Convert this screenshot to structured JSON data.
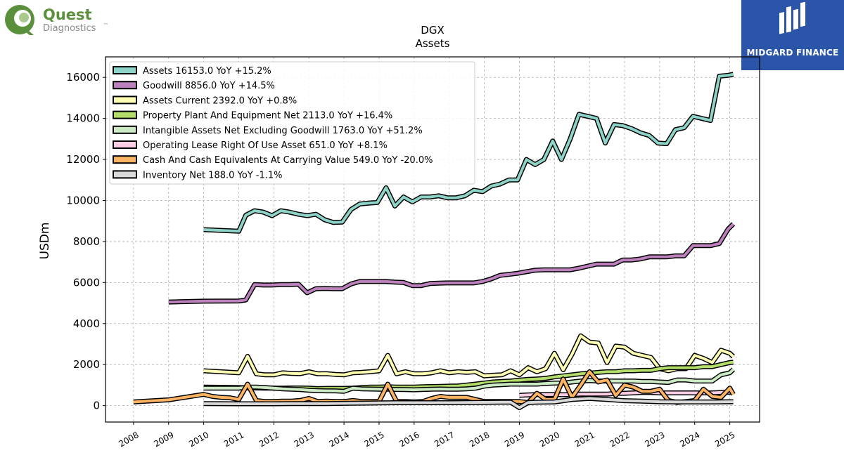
{
  "logos": {
    "left_brand": "Quest",
    "left_sub": "Diagnostics",
    "left_tm": "™",
    "right_brand": "MIDGARD FINANCE"
  },
  "colors": {
    "quest_green": "#5a8f3c",
    "quest_gray": "#8a8a8a",
    "midgard_blue": "#2b55a8"
  },
  "chart_data": {
    "type": "line",
    "title": "DGX",
    "subtitle": "Assets",
    "xlabel": "",
    "ylabel": "USDm",
    "xlim": [
      2007.2,
      2025.85
    ],
    "ylim": [
      -800,
      17000
    ],
    "yticks": [
      0,
      2000,
      4000,
      6000,
      8000,
      10000,
      12000,
      14000,
      16000
    ],
    "xticks": [
      2008,
      2009,
      2010,
      2011,
      2012,
      2013,
      2014,
      2015,
      2016,
      2017,
      2018,
      2019,
      2020,
      2021,
      2022,
      2023,
      2024,
      2025
    ],
    "grid": true,
    "legend_position": "top-left",
    "series": [
      {
        "name": "Assets",
        "legend": "Assets  16153.0 YoY +15.2%",
        "color": "#8dd3c7",
        "x": [
          2010.0,
          2011.0,
          2011.2,
          2011.45,
          2011.7,
          2011.95,
          2012.2,
          2012.45,
          2012.7,
          2012.95,
          2013.2,
          2013.45,
          2013.7,
          2013.95,
          2014.2,
          2014.45,
          2014.7,
          2014.95,
          2015.2,
          2015.45,
          2015.7,
          2015.95,
          2016.2,
          2016.45,
          2016.7,
          2016.95,
          2017.2,
          2017.45,
          2017.7,
          2017.95,
          2018.2,
          2018.45,
          2018.7,
          2018.95,
          2019.2,
          2019.45,
          2019.7,
          2019.95,
          2020.2,
          2020.45,
          2020.7,
          2020.95,
          2021.2,
          2021.45,
          2021.7,
          2021.95,
          2022.2,
          2022.45,
          2022.7,
          2022.95,
          2023.2,
          2023.45,
          2023.7,
          2023.95,
          2024.2,
          2024.45,
          2024.7,
          2024.95,
          2025.1
        ],
        "y": [
          8580,
          8500,
          9280,
          9500,
          9430,
          9260,
          9500,
          9430,
          9330,
          9260,
          9330,
          9060,
          8930,
          8950,
          9560,
          9830,
          9870,
          9900,
          10620,
          9730,
          10170,
          9930,
          10170,
          10170,
          10230,
          10130,
          10130,
          10230,
          10500,
          10430,
          10700,
          10800,
          11000,
          11000,
          12000,
          11750,
          12000,
          12900,
          12000,
          13000,
          14200,
          14100,
          14000,
          12800,
          13700,
          13650,
          13500,
          13300,
          13170,
          12800,
          12770,
          13450,
          13550,
          14100,
          14000,
          13900,
          16060,
          16100,
          16150
        ]
      },
      {
        "name": "Goodwill",
        "legend": "Goodwill  8856.0 YoY +14.5%",
        "color": "#bc80bd",
        "x": [
          2009.0,
          2010.0,
          2011.0,
          2011.2,
          2011.45,
          2011.7,
          2011.95,
          2012.2,
          2012.45,
          2012.7,
          2012.95,
          2013.2,
          2013.45,
          2013.7,
          2013.95,
          2014.2,
          2014.45,
          2014.7,
          2014.95,
          2015.2,
          2015.45,
          2015.7,
          2015.95,
          2016.2,
          2016.45,
          2016.7,
          2016.95,
          2017.2,
          2017.45,
          2017.7,
          2017.95,
          2018.2,
          2018.45,
          2018.7,
          2018.95,
          2019.2,
          2019.45,
          2019.7,
          2019.95,
          2020.2,
          2020.45,
          2020.7,
          2020.95,
          2021.2,
          2021.45,
          2021.7,
          2021.95,
          2022.2,
          2022.45,
          2022.7,
          2022.95,
          2023.2,
          2023.45,
          2023.7,
          2023.95,
          2024.2,
          2024.45,
          2024.7,
          2024.95,
          2025.1
        ],
        "y": [
          5050,
          5090,
          5100,
          5150,
          5900,
          5880,
          5880,
          5900,
          5900,
          5920,
          5500,
          5700,
          5710,
          5700,
          5700,
          5930,
          6050,
          6050,
          6050,
          6050,
          6020,
          6000,
          5850,
          5850,
          5950,
          5970,
          5980,
          5980,
          5980,
          5980,
          6050,
          6180,
          6350,
          6400,
          6450,
          6530,
          6600,
          6620,
          6620,
          6620,
          6620,
          6700,
          6800,
          6900,
          6900,
          6900,
          7100,
          7100,
          7150,
          7250,
          7250,
          7250,
          7300,
          7300,
          7800,
          7800,
          7800,
          7900,
          8600,
          8856
        ]
      },
      {
        "name": "Assets Current",
        "legend": "Assets Current  2392.0 YoY +0.8%",
        "color": "#ffffb3",
        "x": [
          2010.0,
          2011.0,
          2011.25,
          2011.5,
          2011.75,
          2012.0,
          2012.25,
          2012.5,
          2012.75,
          2013.0,
          2013.25,
          2013.5,
          2013.75,
          2014.0,
          2014.25,
          2014.5,
          2014.75,
          2015.0,
          2015.25,
          2015.5,
          2015.75,
          2016.0,
          2016.25,
          2016.5,
          2016.75,
          2017.0,
          2017.25,
          2017.5,
          2017.75,
          2018.0,
          2018.25,
          2018.5,
          2018.75,
          2019.0,
          2019.25,
          2019.5,
          2019.75,
          2020.0,
          2020.25,
          2020.5,
          2020.75,
          2021.0,
          2021.25,
          2021.5,
          2021.75,
          2022.0,
          2022.25,
          2022.5,
          2022.75,
          2023.0,
          2023.25,
          2023.5,
          2023.75,
          2024.0,
          2024.25,
          2024.5,
          2024.75,
          2025.0,
          2025.1
        ],
        "y": [
          1700,
          1600,
          2400,
          1550,
          1500,
          1500,
          1600,
          1570,
          1560,
          1650,
          1550,
          1560,
          1520,
          1500,
          1600,
          1620,
          1650,
          1700,
          2450,
          1550,
          1650,
          1550,
          1550,
          1600,
          1700,
          1600,
          1650,
          1620,
          1650,
          1450,
          1480,
          1500,
          1700,
          1500,
          1850,
          1650,
          1800,
          2550,
          1750,
          2500,
          3400,
          3100,
          3050,
          2100,
          2900,
          2850,
          2550,
          2450,
          2350,
          1800,
          1700,
          1800,
          1800,
          2450,
          2300,
          2100,
          2700,
          2550,
          2392
        ]
      },
      {
        "name": "Property Plant And Equipment Net",
        "legend": "Property Plant And Equipment Net  2113.0 YoY +16.4%",
        "color": "#b3de69",
        "x": [
          2010.0,
          2011.0,
          2011.25,
          2011.5,
          2011.75,
          2012.0,
          2012.25,
          2012.5,
          2012.75,
          2013.0,
          2013.25,
          2013.5,
          2013.75,
          2014.0,
          2014.25,
          2014.5,
          2014.75,
          2015.0,
          2015.25,
          2015.5,
          2015.75,
          2016.0,
          2016.25,
          2016.5,
          2016.75,
          2017.0,
          2017.25,
          2017.5,
          2017.75,
          2018.0,
          2018.25,
          2018.5,
          2018.75,
          2019.0,
          2019.25,
          2019.5,
          2019.75,
          2020.0,
          2020.25,
          2020.5,
          2020.75,
          2021.0,
          2021.25,
          2021.5,
          2021.75,
          2022.0,
          2022.25,
          2022.5,
          2022.75,
          2023.0,
          2023.25,
          2023.5,
          2023.75,
          2024.0,
          2024.25,
          2024.5,
          2024.75,
          2025.0,
          2025.1
        ],
        "y": [
          900,
          880,
          870,
          860,
          850,
          850,
          850,
          860,
          860,
          850,
          830,
          840,
          840,
          840,
          850,
          880,
          900,
          900,
          920,
          900,
          900,
          900,
          920,
          930,
          940,
          950,
          960,
          1000,
          1050,
          1100,
          1150,
          1180,
          1200,
          1240,
          1280,
          1300,
          1330,
          1400,
          1450,
          1500,
          1550,
          1580,
          1620,
          1650,
          1650,
          1700,
          1700,
          1720,
          1720,
          1800,
          1850,
          1850,
          1850,
          1850,
          1900,
          1900,
          2000,
          2100,
          2113
        ]
      },
      {
        "name": "Intangible Assets Net Excluding Goodwill",
        "legend": "Intangible Assets Net Excluding Goodwill  1763.0 YoY +51.2%",
        "color": "#ccebc5",
        "x": [
          2010.0,
          2011.0,
          2011.25,
          2011.5,
          2011.75,
          2012.0,
          2012.25,
          2012.5,
          2012.75,
          2013.0,
          2013.25,
          2013.5,
          2013.75,
          2014.0,
          2014.25,
          2014.5,
          2014.75,
          2015.0,
          2015.25,
          2015.5,
          2015.75,
          2016.0,
          2016.25,
          2016.5,
          2016.75,
          2017.0,
          2017.25,
          2017.5,
          2017.75,
          2018.0,
          2018.25,
          2018.5,
          2018.75,
          2019.0,
          2019.25,
          2019.5,
          2019.75,
          2020.0,
          2020.25,
          2020.5,
          2020.75,
          2021.0,
          2021.25,
          2021.5,
          2021.75,
          2022.0,
          2022.25,
          2022.5,
          2022.75,
          2023.0,
          2023.25,
          2023.5,
          2023.75,
          2024.0,
          2024.25,
          2024.5,
          2024.75,
          2025.0,
          2025.1
        ],
        "y": [
          850,
          850,
          900,
          900,
          880,
          850,
          820,
          800,
          780,
          750,
          730,
          720,
          720,
          700,
          850,
          820,
          810,
          800,
          800,
          790,
          780,
          770,
          790,
          800,
          810,
          800,
          800,
          820,
          850,
          950,
          1000,
          1020,
          1050,
          1050,
          1050,
          1050,
          1080,
          1100,
          1100,
          1150,
          1200,
          1220,
          1200,
          1200,
          1200,
          1200,
          1200,
          1180,
          1180,
          1150,
          1130,
          1250,
          1250,
          1200,
          1200,
          1200,
          1500,
          1600,
          1763
        ]
      },
      {
        "name": "Operating Lease Right Of Use Asset",
        "legend": "Operating Lease Right Of Use Asset  651.0 YoY +8.1%",
        "color": "#fccde5",
        "x": [
          2019.0,
          2019.25,
          2019.5,
          2019.75,
          2020.0,
          2020.25,
          2020.5,
          2020.75,
          2021.0,
          2021.25,
          2021.5,
          2021.75,
          2022.0,
          2022.25,
          2022.5,
          2022.75,
          2023.0,
          2023.25,
          2023.5,
          2023.75,
          2024.0,
          2024.25,
          2024.5,
          2024.75,
          2025.0,
          2025.1
        ],
        "y": [
          500,
          520,
          540,
          540,
          540,
          530,
          540,
          560,
          560,
          560,
          560,
          600,
          600,
          620,
          640,
          640,
          620,
          620,
          620,
          620,
          620,
          620,
          620,
          640,
          650,
          651
        ]
      },
      {
        "name": "Cash And Cash Equivalents At Carrying Value",
        "legend": "Cash And Cash Equivalents At Carrying Value  549.0 YoY -20.0%",
        "color": "#fdb462",
        "x": [
          2008.0,
          2009.0,
          2010.0,
          2010.25,
          2010.5,
          2010.75,
          2011.0,
          2011.25,
          2011.5,
          2011.75,
          2012.0,
          2012.25,
          2012.5,
          2012.75,
          2013.0,
          2013.25,
          2013.5,
          2013.75,
          2014.0,
          2014.25,
          2014.5,
          2014.75,
          2015.0,
          2015.25,
          2015.5,
          2015.75,
          2016.0,
          2016.25,
          2016.5,
          2016.75,
          2017.0,
          2017.25,
          2017.5,
          2017.75,
          2018.0,
          2018.25,
          2018.5,
          2018.75,
          2019.0,
          2019.25,
          2019.5,
          2019.75,
          2020.0,
          2020.25,
          2020.5,
          2020.75,
          2021.0,
          2021.25,
          2021.5,
          2021.75,
          2022.0,
          2022.25,
          2022.5,
          2022.75,
          2023.0,
          2023.25,
          2023.5,
          2023.75,
          2024.0,
          2024.25,
          2024.5,
          2024.75,
          2025.0,
          2025.1
        ],
        "y": [
          180,
          280,
          550,
          450,
          400,
          380,
          300,
          1050,
          250,
          200,
          200,
          220,
          220,
          250,
          350,
          200,
          220,
          200,
          200,
          250,
          200,
          200,
          200,
          1050,
          200,
          200,
          180,
          200,
          350,
          450,
          400,
          400,
          400,
          300,
          200,
          200,
          200,
          200,
          200,
          150,
          600,
          300,
          300,
          1300,
          400,
          1000,
          1650,
          1150,
          1250,
          500,
          1000,
          900,
          700,
          700,
          800,
          250,
          150,
          200,
          250,
          800,
          450,
          400,
          850,
          549
        ]
      },
      {
        "name": "Inventory Net",
        "legend": "Inventory Net  188.0 YoY -1.1%",
        "color": "#d9d9d9",
        "x": [
          2010.0,
          2011.0,
          2011.5,
          2012.0,
          2012.5,
          2013.0,
          2013.5,
          2014.0,
          2014.5,
          2015.0,
          2015.5,
          2016.0,
          2016.5,
          2017.0,
          2017.5,
          2018.0,
          2018.5,
          2018.75,
          2019.0,
          2019.25,
          2019.5,
          2020.0,
          2020.5,
          2021.0,
          2021.5,
          2022.0,
          2022.5,
          2023.0,
          2023.5,
          2024.0,
          2024.5,
          2025.0,
          2025.1
        ],
        "y": [
          100,
          90,
          90,
          90,
          100,
          100,
          100,
          110,
          120,
          130,
          140,
          140,
          140,
          140,
          150,
          160,
          170,
          170,
          -100,
          150,
          170,
          180,
          300,
          350,
          300,
          240,
          220,
          190,
          180,
          180,
          180,
          190,
          188
        ]
      }
    ]
  }
}
